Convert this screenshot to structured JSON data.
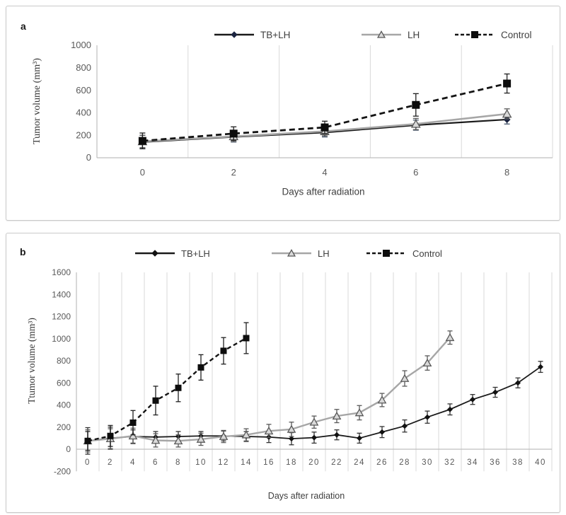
{
  "panel_labels": [
    "a",
    "b"
  ],
  "colors": {
    "axis": "#bfbfbf",
    "grid": "#d9d9d9",
    "tick_text": "#595959",
    "legend_text": "#404040",
    "panel_border": "#c9c9c9"
  },
  "chart_data": [
    {
      "type": "line",
      "xlabel": "Days after radiation",
      "ylabel": "Tumor volume (mm³)",
      "x": [
        0,
        2,
        4,
        6,
        8
      ],
      "y_ticks": [
        0,
        200,
        400,
        600,
        800,
        1000
      ],
      "ylim": [
        0,
        1000
      ],
      "grid": "vertical",
      "legend_position": "top",
      "series": [
        {
          "name": "TB+LH",
          "marker": "diamond",
          "line": "solid",
          "color": "#1a1a1a",
          "marker_color": "#1b2440",
          "error_color": "#44546a",
          "values": [
            140,
            185,
            225,
            290,
            340
          ],
          "errors": [
            60,
            45,
            40,
            45,
            40
          ]
        },
        {
          "name": "LH",
          "marker": "triangle-open",
          "line": "solid",
          "color": "#a6a6a6",
          "marker_color": "#d9d9d9",
          "marker_stroke": "#595959",
          "error_color": "#595959",
          "values": [
            145,
            190,
            235,
            300,
            390
          ],
          "errors": [
            55,
            45,
            40,
            50,
            45
          ]
        },
        {
          "name": "Control",
          "marker": "square",
          "line": "dashed",
          "color": "#141414",
          "marker_color": "#0d0d0d",
          "error_color": "#1f1f1f",
          "values": [
            150,
            215,
            270,
            470,
            660
          ],
          "errors": [
            70,
            60,
            55,
            100,
            85
          ]
        }
      ]
    },
    {
      "type": "line",
      "xlabel": "Days after radiation",
      "ylabel": "Ttumor volume (mm³)",
      "x": [
        0,
        2,
        4,
        6,
        8,
        10,
        12,
        14,
        16,
        18,
        20,
        22,
        24,
        26,
        28,
        30,
        32,
        34,
        36,
        38,
        40
      ],
      "y_ticks": [
        -200,
        0,
        200,
        400,
        600,
        800,
        1000,
        1200,
        1400,
        1600
      ],
      "ylim": [
        -200,
        1600
      ],
      "grid": "vertical",
      "legend_position": "top",
      "series": [
        {
          "name": "TB+LH",
          "marker": "diamond",
          "line": "solid",
          "color": "#1a1a1a",
          "marker_color": "#111111",
          "error_color": "#333333",
          "values": [
            75,
            100,
            115,
            110,
            115,
            120,
            120,
            115,
            110,
            95,
            105,
            130,
            100,
            155,
            210,
            290,
            360,
            450,
            515,
            600,
            745
          ],
          "errors": [
            120,
            100,
            60,
            50,
            45,
            40,
            45,
            45,
            50,
            55,
            50,
            45,
            45,
            50,
            55,
            55,
            50,
            45,
            45,
            45,
            50
          ]
        },
        {
          "name": "LH",
          "marker": "triangle-open",
          "line": "solid",
          "color": "#a6a6a6",
          "marker_color": "#d9d9d9",
          "marker_stroke": "#595959",
          "error_color": "#595959",
          "values": [
            75,
            95,
            120,
            80,
            75,
            90,
            115,
            130,
            165,
            180,
            245,
            300,
            330,
            445,
            640,
            780,
            1010
          ],
          "errors": [
            100,
            90,
            70,
            60,
            55,
            55,
            55,
            55,
            60,
            65,
            55,
            60,
            65,
            60,
            70,
            65,
            60
          ]
        },
        {
          "name": "Control",
          "marker": "square",
          "line": "dashed",
          "color": "#141414",
          "marker_color": "#0d0d0d",
          "error_color": "#1f1f1f",
          "values": [
            75,
            120,
            240,
            440,
            555,
            740,
            890,
            1005
          ],
          "errors": [
            85,
            95,
            110,
            130,
            125,
            115,
            120,
            140
          ]
        }
      ]
    }
  ]
}
